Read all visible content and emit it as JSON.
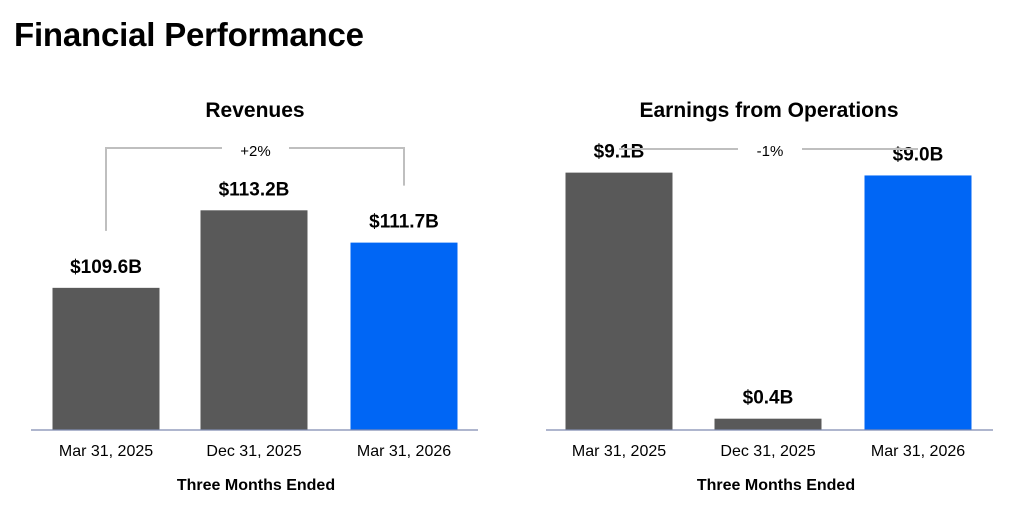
{
  "page": {
    "title": "Financial Performance"
  },
  "chart_data": [
    {
      "type": "bar",
      "title": "Revenues",
      "xlabel": "Three Months Ended",
      "ylabel": "",
      "categories": [
        "Mar 31, 2025",
        "Dec 31, 2025",
        "Mar 31, 2026"
      ],
      "values": [
        109.6,
        113.2,
        111.7
      ],
      "value_labels": [
        "$109.6B",
        "$113.2B",
        "$111.7B"
      ],
      "units": "$B",
      "ylim": [
        103.0,
        116.0
      ],
      "colors": [
        "#595959",
        "#595959",
        "#0066f5"
      ],
      "comparison": {
        "from": 0,
        "to": 2,
        "label": "+2%"
      },
      "grid": false
    },
    {
      "type": "bar",
      "title": "Earnings from Operations",
      "xlabel": "Three Months Ended",
      "ylabel": "",
      "categories": [
        "Mar 31, 2025",
        "Dec 31, 2025",
        "Mar 31, 2026"
      ],
      "values": [
        9.1,
        0.4,
        9.0
      ],
      "value_labels": [
        "$9.1B",
        "$0.4B",
        "$9.0B"
      ],
      "units": "$B",
      "ylim": [
        0,
        9.9
      ],
      "colors": [
        "#595959",
        "#595959",
        "#0066f5"
      ],
      "comparison": {
        "from": 0,
        "to": 2,
        "label": "-1%"
      },
      "grid": false
    }
  ]
}
